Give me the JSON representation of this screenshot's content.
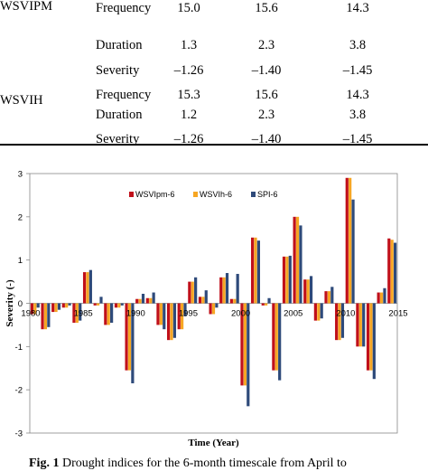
{
  "table": {
    "rows": [
      {
        "index": "WSVIPM",
        "metric": "Frequency",
        "values": [
          "15.0",
          "15.6",
          "14.3"
        ]
      },
      {
        "index": "",
        "metric": "Duration",
        "values": [
          "1.3",
          "2.3",
          "3.8"
        ]
      },
      {
        "index": "",
        "metric": "Severity",
        "values": [
          "–1.26",
          "–1.40",
          "–1.45"
        ]
      },
      {
        "index": "WSVIH",
        "metric": "Frequency",
        "values": [
          "15.3",
          "15.6",
          "14.3"
        ]
      },
      {
        "index": "",
        "metric": "Duration",
        "values": [
          "1.2",
          "2.3",
          "3.8"
        ]
      },
      {
        "index": "",
        "metric": "Severity",
        "values": [
          "–1.26",
          "–1.40",
          "–1.45"
        ]
      }
    ]
  },
  "caption": {
    "label": "Fig. 1",
    "text": " Drought indices for the 6-month timescale from April to"
  },
  "colors": {
    "WSVIpm-6": "#c0101a",
    "WSVIh-6": "#f6a623",
    "SPI-6": "#2e4a7a"
  },
  "chart_data": {
    "type": "bar",
    "xlabel": "Time  (Year)",
    "ylabel": "Severity   (-)",
    "ylim": [
      -3,
      3
    ],
    "yticks": [
      -3,
      -2,
      -1,
      0,
      1,
      2,
      3
    ],
    "xticks": [
      "1980",
      "1985",
      "1990",
      "1995",
      "2000",
      "2005",
      "2010",
      "2015"
    ],
    "legend_position": "top-right",
    "categories": [
      "1980",
      "1981",
      "1982",
      "1983",
      "1984",
      "1985",
      "1986",
      "1987",
      "1988",
      "1989",
      "1990",
      "1991",
      "1992",
      "1993",
      "1994",
      "1995",
      "1996",
      "1997",
      "1998",
      "1999",
      "2000",
      "2001",
      "2002",
      "2003",
      "2004",
      "2005",
      "2006",
      "2007",
      "2008",
      "2009",
      "2010",
      "2011",
      "2012",
      "2013",
      "2014"
    ],
    "series": [
      {
        "name": "WSVIpm-6",
        "values": [
          -0.25,
          -0.6,
          -0.2,
          -0.1,
          -0.45,
          0.72,
          -0.05,
          -0.5,
          -0.1,
          -1.55,
          0.1,
          0.12,
          -0.5,
          -0.85,
          -0.6,
          0.5,
          0.15,
          -0.25,
          0.6,
          0.1,
          -1.9,
          1.52,
          -0.05,
          -1.55,
          1.08,
          2.0,
          0.55,
          -0.4,
          0.28,
          -0.85,
          2.9,
          -1.0,
          -1.55,
          0.25,
          1.5
        ]
      },
      {
        "name": "WSVIh-6",
        "values": [
          -0.25,
          -0.6,
          -0.2,
          -0.1,
          -0.45,
          0.72,
          -0.05,
          -0.5,
          -0.1,
          -1.55,
          0.1,
          0.12,
          -0.5,
          -0.85,
          -0.6,
          0.5,
          0.15,
          -0.25,
          0.6,
          0.1,
          -1.9,
          1.52,
          -0.05,
          -1.55,
          1.08,
          2.0,
          0.55,
          -0.4,
          0.28,
          -0.85,
          2.9,
          -1.0,
          -1.55,
          0.25,
          1.47
        ]
      },
      {
        "name": "SPI-6",
        "values": [
          -0.1,
          -0.55,
          -0.15,
          -0.05,
          -0.4,
          0.77,
          0.15,
          -0.45,
          -0.05,
          -1.85,
          0.22,
          0.25,
          -0.6,
          -0.8,
          -0.3,
          0.6,
          0.3,
          -0.1,
          0.7,
          0.68,
          -2.38,
          1.45,
          0.12,
          -1.78,
          1.1,
          1.8,
          0.63,
          -0.35,
          0.38,
          -0.8,
          2.4,
          -1.0,
          -1.75,
          0.35,
          1.4
        ]
      }
    ]
  }
}
